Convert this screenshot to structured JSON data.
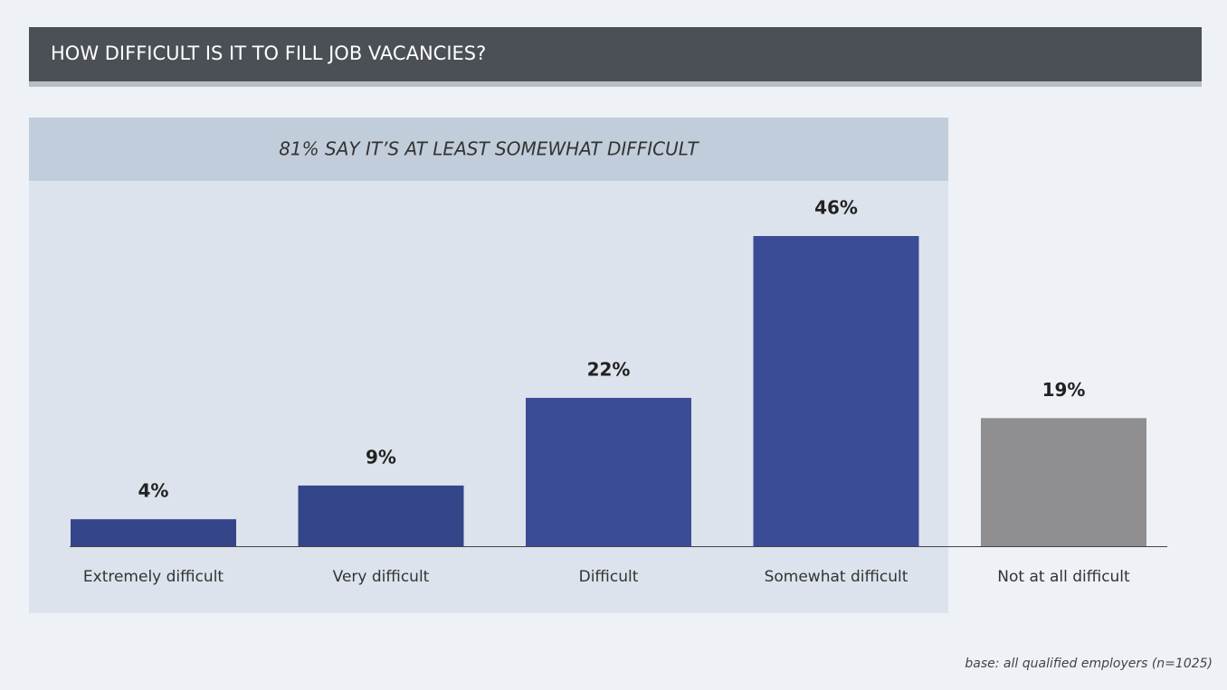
{
  "chart_data": {
    "type": "bar",
    "title": "HOW DIFFICULT IS IT TO FILL JOB VACANCIES?",
    "annotation": "81% SAY IT’S AT LEAST SOMEWHAT DIFFICULT",
    "categories": [
      "Extremely difficult",
      "Very difficult",
      "Difficult",
      "Somewhat difficult",
      "Not at all difficult"
    ],
    "values": [
      4,
      9,
      22,
      46,
      19
    ],
    "value_labels": [
      "4%",
      "9%",
      "22%",
      "46%",
      "19%"
    ],
    "colors": [
      "#35458a",
      "#35458a",
      "#3a4c95",
      "#3a4c95",
      "#8f8f91"
    ],
    "footnote": "base: all qualified employers (n=1025)"
  }
}
